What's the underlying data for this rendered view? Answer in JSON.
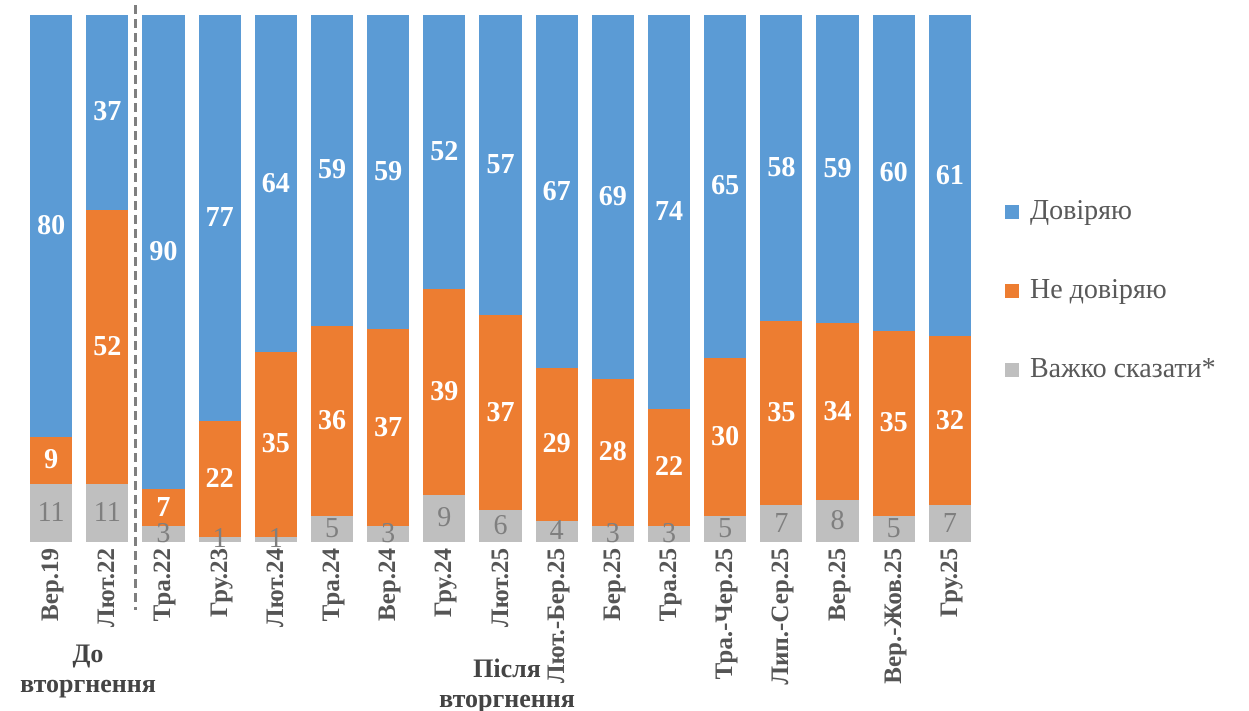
{
  "chart_data": {
    "type": "bar",
    "variant": "stacked-100-percent",
    "title": "",
    "xlabel": "",
    "ylabel": "",
    "ylim": [
      0,
      100
    ],
    "grid": false,
    "legend_position": "right",
    "categories": [
      "Вер.19",
      "Лют.22",
      "Тра.22",
      "Гру.23",
      "Лют.24",
      "Тра.24",
      "Вер.24",
      "Гру.24",
      "Лют.25",
      "Лют.-Бер.25",
      "Бер.25",
      "Тра.25",
      "Тра.-Чер.25",
      "Лип.-Сер.25",
      "Вер.25",
      "Вер.-Жов.25",
      "Гру.25"
    ],
    "series": [
      {
        "name": "Довіряю",
        "color": "#5B9BD5",
        "label_color": "#FFFFFF",
        "values": [
          80,
          37,
          90,
          77,
          64,
          59,
          59,
          52,
          57,
          67,
          69,
          74,
          65,
          58,
          59,
          60,
          61
        ]
      },
      {
        "name": "Не довіряю",
        "color": "#ED7D31",
        "label_color": "#FFFFFF",
        "values": [
          9,
          52,
          7,
          22,
          35,
          36,
          37,
          39,
          37,
          29,
          28,
          22,
          30,
          35,
          34,
          35,
          32
        ]
      },
      {
        "name": "Важко сказати*",
        "color": "#BFBFBF",
        "label_color": "#7F7F7F",
        "values": [
          11,
          11,
          3,
          1,
          1,
          5,
          3,
          9,
          6,
          4,
          3,
          3,
          5,
          7,
          8,
          5,
          7
        ]
      }
    ],
    "group_labels": {
      "before": "До вторгнення",
      "after": "Після вторгнення"
    },
    "separator": {
      "after_category": "Лют.22",
      "style": "dashed",
      "color": "#7F7F7F"
    }
  }
}
